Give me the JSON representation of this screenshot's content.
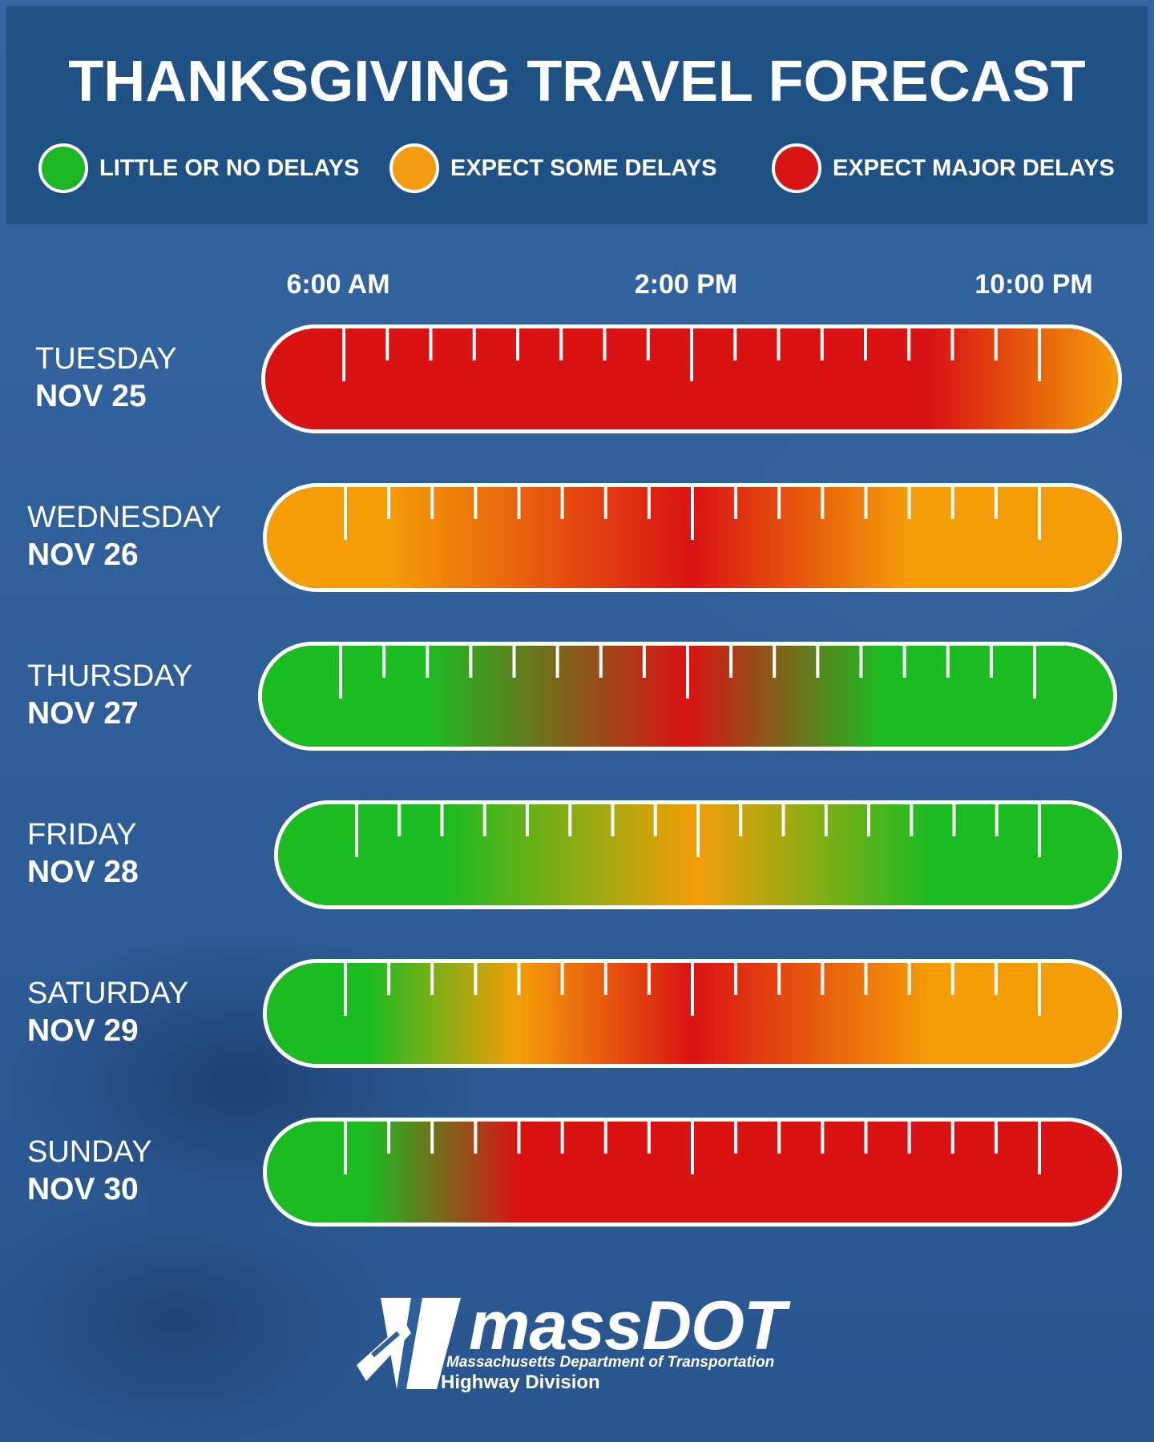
{
  "header": {
    "title": "THANKSGIVING TRAVEL FORECAST",
    "legend": [
      {
        "label": "LITTLE OR NO DELAYS",
        "color": "#1db726",
        "icon": "green-circle-icon"
      },
      {
        "label": "EXPECT SOME DELAYS",
        "color": "#f39c12",
        "icon": "orange-circle-icon"
      },
      {
        "label": "EXPECT MAJOR DELAYS",
        "color": "#d91515",
        "icon": "red-circle-icon"
      }
    ]
  },
  "colors": {
    "green": "#1bbb22",
    "orange": "#f49d08",
    "red": "#d91314",
    "header_bg": "#1f5184",
    "page_bg": "#2f5f98"
  },
  "time_axis": {
    "labels": [
      "6:00 AM",
      "2:00 PM",
      "10:00 PM"
    ],
    "start_hour": 6,
    "end_hour": 22
  },
  "chart_data": {
    "type": "heatmap",
    "title": "THANKSGIVING TRAVEL FORECAST",
    "x_ticks": [
      "6:00 AM",
      "2:00 PM",
      "10:00 PM"
    ],
    "categories": [
      "green",
      "orange",
      "red"
    ],
    "legend": [
      "LITTLE OR NO DELAYS",
      "EXPECT SOME DELAYS",
      "EXPECT MAJOR DELAYS"
    ],
    "days": [
      {
        "day": "TUESDAY",
        "date": "NOV 25",
        "forecast": [
          [
            4,
            "red"
          ],
          [
            14,
            "red"
          ],
          [
            19.5,
            "red"
          ],
          [
            24,
            "orange"
          ]
        ]
      },
      {
        "day": "WEDNESDAY",
        "date": "NOV 26",
        "forecast": [
          [
            4,
            "orange"
          ],
          [
            7,
            "orange"
          ],
          [
            14,
            "red"
          ],
          [
            19,
            "orange"
          ],
          [
            24,
            "orange"
          ]
        ]
      },
      {
        "day": "THURSDAY",
        "date": "NOV 27",
        "forecast": [
          [
            4,
            "green"
          ],
          [
            8,
            "green"
          ],
          [
            14,
            "red"
          ],
          [
            18.5,
            "green"
          ],
          [
            24,
            "green"
          ]
        ]
      },
      {
        "day": "FRIDAY",
        "date": "NOV 28",
        "forecast": [
          [
            4,
            "green"
          ],
          [
            8,
            "green"
          ],
          [
            14,
            "orange"
          ],
          [
            19.5,
            "green"
          ],
          [
            24,
            "green"
          ]
        ]
      },
      {
        "day": "SATURDAY",
        "date": "NOV 29",
        "forecast": [
          [
            4,
            "green"
          ],
          [
            6.5,
            "green"
          ],
          [
            10,
            "orange"
          ],
          [
            14,
            "red"
          ],
          [
            19.5,
            "orange"
          ],
          [
            24,
            "orange"
          ]
        ]
      },
      {
        "day": "SUNDAY",
        "date": "NOV 30",
        "forecast": [
          [
            4,
            "green"
          ],
          [
            6.5,
            "green"
          ],
          [
            10,
            "red"
          ],
          [
            24,
            "red"
          ]
        ]
      }
    ]
  },
  "footer": {
    "logo_word": "massDOT",
    "logo_line1": "Massachusetts Department of Transportation",
    "logo_line2": "Highway Division",
    "logo_icon": "massdot-road-icon"
  }
}
